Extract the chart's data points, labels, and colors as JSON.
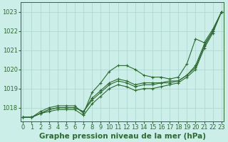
{
  "x": [
    0,
    1,
    2,
    3,
    4,
    5,
    6,
    7,
    8,
    9,
    10,
    11,
    12,
    13,
    14,
    15,
    16,
    17,
    18,
    19,
    20,
    21,
    22,
    23
  ],
  "series": [
    {
      "name": "line_high",
      "values": [
        1017.5,
        1017.5,
        1017.8,
        1018.0,
        1018.1,
        1018.1,
        1018.1,
        1017.7,
        1018.8,
        1019.3,
        1019.9,
        1020.2,
        1020.2,
        1020.0,
        1019.7,
        1019.6,
        1019.6,
        1019.5,
        1019.6,
        1020.3,
        1021.6,
        1021.4,
        1022.1,
        1023.0
      ]
    },
    {
      "name": "line_mid1",
      "values": [
        1017.5,
        1017.5,
        1017.7,
        1017.9,
        1018.0,
        1018.0,
        1018.0,
        1017.8,
        1018.5,
        1018.9,
        1019.3,
        1019.5,
        1019.4,
        1019.2,
        1019.3,
        1019.3,
        1019.3,
        1019.4,
        1019.4,
        1019.7,
        1020.2,
        1021.3,
        1022.0,
        1023.0
      ]
    },
    {
      "name": "line_mid2",
      "values": [
        1017.5,
        1017.5,
        1017.7,
        1017.9,
        1018.0,
        1018.0,
        1018.0,
        1017.8,
        1018.4,
        1018.8,
        1019.2,
        1019.4,
        1019.3,
        1019.1,
        1019.2,
        1019.2,
        1019.3,
        1019.3,
        1019.4,
        1019.7,
        1020.1,
        1021.2,
        1022.0,
        1023.0
      ]
    },
    {
      "name": "line_low",
      "values": [
        1017.5,
        1017.5,
        1017.7,
        1017.8,
        1017.9,
        1017.9,
        1017.9,
        1017.6,
        1018.2,
        1018.6,
        1019.0,
        1019.2,
        1019.1,
        1018.9,
        1019.0,
        1019.0,
        1019.1,
        1019.2,
        1019.3,
        1019.6,
        1020.0,
        1021.1,
        1021.9,
        1023.0
      ]
    }
  ],
  "ylim": [
    1017.3,
    1023.5
  ],
  "yticks": [
    1018,
    1019,
    1020,
    1021,
    1022,
    1023
  ],
  "xticks": [
    0,
    1,
    2,
    3,
    4,
    5,
    6,
    7,
    8,
    9,
    10,
    11,
    12,
    13,
    14,
    15,
    16,
    17,
    18,
    19,
    20,
    21,
    22,
    23
  ],
  "xlabel": "Graphe pression niveau de la mer (hPa)",
  "bg_color": "#cceee8",
  "grid_color": "#aad4cc",
  "line_color": "#2d6a2d",
  "marker": "+",
  "marker_size": 3,
  "linewidth": 0.8,
  "tick_fontsize": 6.0,
  "xlabel_fontsize": 7.5
}
